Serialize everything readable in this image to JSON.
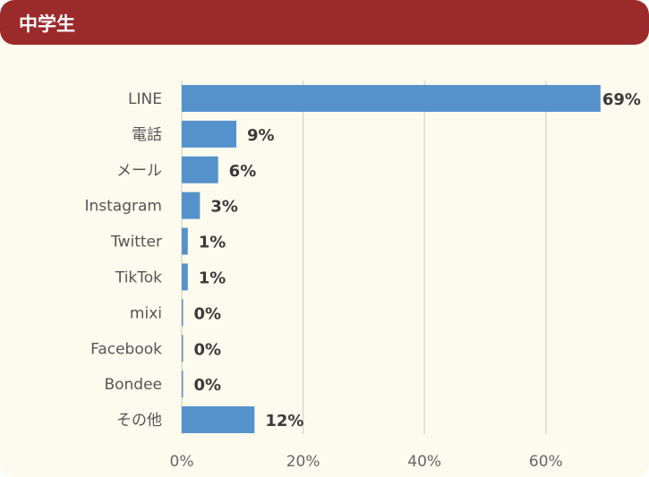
{
  "header": {
    "title": "中学生"
  },
  "chart_data": {
    "type": "bar",
    "orientation": "horizontal",
    "categories": [
      "LINE",
      "電話",
      "メール",
      "Instagram",
      "Twitter",
      "TikTok",
      "mixi",
      "Facebook",
      "Bondee",
      "その他"
    ],
    "values": [
      69,
      9,
      6,
      3,
      1,
      1,
      0,
      0,
      0,
      12
    ],
    "data_labels": [
      "69%",
      "9%",
      "6%",
      "3%",
      "1%",
      "1%",
      "0%",
      "0%",
      "0%",
      "12%"
    ],
    "xlim": [
      0,
      70
    ],
    "xticks": [
      0,
      20,
      40,
      60
    ],
    "xtick_labels": [
      "0%",
      "20%",
      "40%",
      "60%"
    ],
    "grid": "vertical",
    "bar_color": "#5592cb"
  }
}
